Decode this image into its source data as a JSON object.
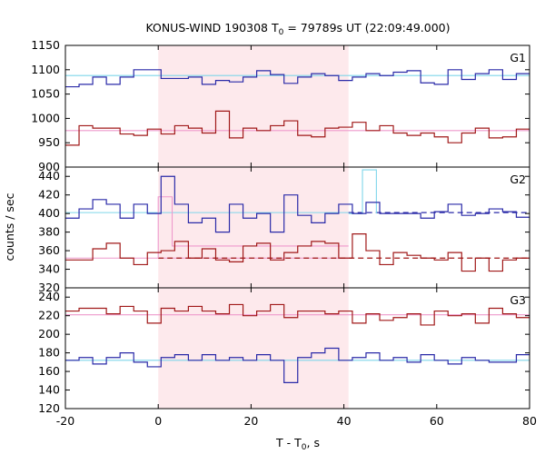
{
  "title_prefix": "KONUS-WIND 190308 T",
  "title_sub": "0",
  "title_suffix": " = 79789s UT (22:09:49.000)",
  "xlabel_prefix": "T - T",
  "xlabel_sub": "0",
  "xlabel_suffix": ", s",
  "ylabel": "counts / sec",
  "colors": {
    "blue": "#2a2aa8",
    "red": "#a01818",
    "cyan": "#7fd6ea",
    "pink": "#ee99cc",
    "shade": "#fde9ec"
  },
  "chart_data": {
    "type": "line",
    "step": true,
    "xlim": [
      -20,
      80
    ],
    "xticks": [
      "-20",
      "0",
      "20",
      "40",
      "60",
      "80"
    ],
    "shaded_interval": [
      0,
      41
    ],
    "panels": [
      {
        "name": "G1",
        "ylim": [
          900,
          1150
        ],
        "yticks": [
          "900",
          "950",
          "1000",
          "1050",
          "1100",
          "1150"
        ],
        "series": [
          {
            "color": "blue",
            "x0": -20,
            "width": 2.944,
            "values": [
              1065,
              1070,
              1085,
              1070,
              1085,
              1100,
              1100,
              1082,
              1082,
              1085,
              1070,
              1078,
              1075,
              1085,
              1098,
              1090,
              1072,
              1085,
              1092,
              1088,
              1078,
              1085,
              1092,
              1088,
              1095,
              1098,
              1073,
              1070,
              1100,
              1080,
              1092,
              1100,
              1080,
              1092,
              1078,
              1098,
              1085,
              1098
            ]
          },
          {
            "color": "red",
            "x0": -20,
            "width": 2.944,
            "values": [
              945,
              985,
              980,
              980,
              968,
              965,
              978,
              968,
              985,
              980,
              970,
              1015,
              960,
              980,
              975,
              985,
              995,
              965,
              962,
              980,
              982,
              992,
              975,
              985,
              970,
              965,
              970,
              962,
              950,
              970,
              980,
              960,
              962,
              978,
              975,
              962,
              968,
              968
            ]
          }
        ],
        "fits": [
          {
            "color": "cyan",
            "y": 1088
          },
          {
            "color": "pink",
            "y": 975
          }
        ],
        "annotations": []
      },
      {
        "name": "G2",
        "ylim": [
          320,
          450
        ],
        "yticks": [
          "320",
          "340",
          "360",
          "380",
          "400",
          "420",
          "440"
        ],
        "series": [
          {
            "color": "blue",
            "x0": -20,
            "width": 2.944,
            "values": [
              395,
              405,
              415,
              410,
              395,
              410,
              400,
              440,
              410,
              390,
              395,
              380,
              410,
              395,
              400,
              380,
              420,
              398,
              390,
              400,
              410,
              400,
              412,
              400,
              400,
              400,
              395,
              402,
              410,
              398,
              400,
              405,
              402,
              396,
              385,
              410,
              390,
              405
            ]
          },
          {
            "color": "red",
            "x0": -20,
            "width": 2.944,
            "values": [
              350,
              350,
              362,
              368,
              352,
              345,
              358,
              360,
              370,
              352,
              362,
              350,
              348,
              365,
              368,
              350,
              358,
              365,
              370,
              368,
              352,
              378,
              360,
              345,
              358,
              355,
              352,
              350,
              358,
              338,
              352,
              338,
              350,
              352,
              345,
              355,
              352,
              355
            ]
          }
        ],
        "fits": [
          {
            "color": "cyan",
            "y": 401,
            "from": -20,
            "to": 41
          },
          {
            "color": "blue",
            "y": 401,
            "from": 41,
            "to": 80,
            "dashed": true
          },
          {
            "color": "pink",
            "y": 352,
            "from": -20,
            "to": 41
          },
          {
            "color": "red",
            "y": 352,
            "from": 0,
            "to": 80,
            "dashed": true
          }
        ],
        "annotations": [
          {
            "type": "step",
            "color": "pink",
            "points": [
              [
                0,
                352
              ],
              [
                0,
                418
              ],
              [
                3,
                418
              ],
              [
                3,
                365
              ],
              [
                41,
                365
              ]
            ]
          },
          {
            "type": "step",
            "color": "cyan",
            "points": [
              [
                41,
                400
              ],
              [
                44,
                400
              ],
              [
                44,
                447
              ],
              [
                47,
                447
              ],
              [
                47,
                400
              ]
            ]
          }
        ]
      },
      {
        "name": "G3",
        "ylim": [
          120,
          250
        ],
        "yticks": [
          "120",
          "140",
          "160",
          "180",
          "200",
          "220",
          "240"
        ],
        "series": [
          {
            "color": "red",
            "x0": -20,
            "width": 2.944,
            "values": [
              225,
              228,
              228,
              222,
              230,
              225,
              212,
              228,
              225,
              230,
              225,
              222,
              232,
              220,
              225,
              232,
              218,
              225,
              225,
              222,
              225,
              212,
              222,
              215,
              218,
              222,
              210,
              225,
              220,
              222,
              212,
              228,
              222,
              218,
              222,
              212,
              225,
              222
            ]
          },
          {
            "color": "blue",
            "x0": -20,
            "width": 2.944,
            "values": [
              172,
              175,
              168,
              175,
              180,
              170,
              165,
              175,
              178,
              172,
              178,
              172,
              175,
              172,
              178,
              172,
              148,
              175,
              180,
              185,
              172,
              175,
              180,
              172,
              175,
              170,
              178,
              172,
              168,
              175,
              172,
              170,
              170,
              178,
              175,
              172,
              170,
              180
            ]
          }
        ],
        "fits": [
          {
            "color": "pink",
            "y": 221
          },
          {
            "color": "cyan",
            "y": 172
          }
        ],
        "annotations": []
      }
    ]
  }
}
